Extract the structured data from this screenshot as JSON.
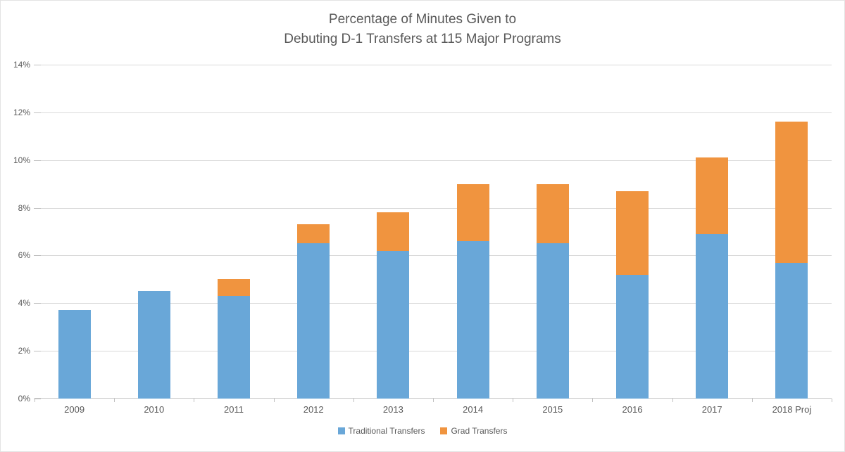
{
  "chart_data": {
    "type": "bar",
    "stacked": true,
    "title": "Percentage of Minutes Given to Debuting D-1 Transfers at 115 Major Programs",
    "title_line1": "Percentage of Minutes Given to",
    "title_line2": "Debuting D-1 Transfers at 115 Major Programs",
    "categories": [
      "2009",
      "2010",
      "2011",
      "2012",
      "2013",
      "2014",
      "2015",
      "2016",
      "2017",
      "2018 Proj"
    ],
    "series": [
      {
        "name": "Traditional Transfers",
        "color": "#69a7d8",
        "values": [
          3.7,
          4.5,
          4.3,
          6.5,
          6.2,
          6.6,
          6.5,
          5.2,
          6.9,
          5.7
        ]
      },
      {
        "name": "Grad Transfers",
        "color": "#f0943f",
        "values": [
          0,
          0,
          0.7,
          0.8,
          1.6,
          2.4,
          2.5,
          3.5,
          3.2,
          5.9
        ]
      }
    ],
    "stack_totals": [
      3.7,
      4.5,
      5.0,
      7.3,
      7.8,
      9.0,
      9.0,
      8.7,
      10.1,
      11.6
    ],
    "xlabel": "",
    "ylabel": "",
    "ylim": [
      0,
      14
    ],
    "ytick_step": 2,
    "ytick_labels": [
      "0%",
      "2%",
      "4%",
      "6%",
      "8%",
      "10%",
      "12%",
      "14%"
    ],
    "grid": true,
    "legend_position": "bottom",
    "colors": {
      "traditional": "#69a7d8",
      "grad": "#f0943f",
      "gridline": "#d9d9d9",
      "axis_line": "#c6c6c6",
      "tick": "#bfbfbf",
      "text": "#595959",
      "background": "#ffffff"
    }
  }
}
